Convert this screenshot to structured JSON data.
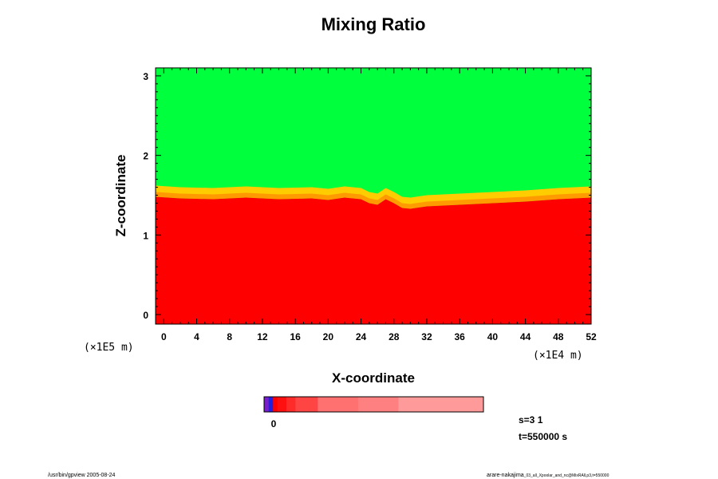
{
  "chart_data": {
    "type": "heatmap",
    "title": "Mixing Ratio",
    "xlabel": "X-coordinate",
    "ylabel": "Z-coordinate",
    "x_scale_label": "(×1E4 m)",
    "y_scale_label": "(×1E5 m)",
    "xlim": [
      -1,
      52
    ],
    "ylim": [
      -0.12,
      3.1
    ],
    "x_ticks": [
      0,
      4,
      8,
      12,
      16,
      20,
      24,
      28,
      32,
      36,
      40,
      44,
      48,
      52
    ],
    "y_ticks": [
      0,
      1,
      2,
      3
    ],
    "grid": false,
    "regions": [
      {
        "name": "upper",
        "color": "#00ff3c",
        "z_from": 1.5,
        "z_to": 3.1
      },
      {
        "name": "transition",
        "color": "#ffcc00",
        "z_from": 1.35,
        "z_to": 1.55
      },
      {
        "name": "lower",
        "color": "#ff0000",
        "z_from": -0.12,
        "z_to": 1.35
      }
    ],
    "interface_profile": {
      "x": [
        -1,
        2,
        6,
        10,
        14,
        18,
        20,
        22,
        24,
        25,
        26,
        27,
        28,
        29,
        30,
        32,
        36,
        40,
        44,
        48,
        52
      ],
      "z": [
        1.48,
        1.46,
        1.45,
        1.47,
        1.45,
        1.46,
        1.44,
        1.47,
        1.45,
        1.4,
        1.38,
        1.45,
        1.4,
        1.34,
        1.33,
        1.36,
        1.38,
        1.4,
        1.42,
        1.45,
        1.47
      ]
    },
    "colorbar": {
      "colors": [
        "#7a1fc8",
        "#2020e0",
        "#ff0000",
        "#ff1010",
        "#ff2a2a",
        "#ff4444",
        "#ff7070",
        "#ff8080",
        "#ff9a9a"
      ],
      "widths": [
        1,
        1,
        1,
        2,
        2,
        5,
        9,
        9,
        19
      ],
      "tick_label": "0"
    }
  },
  "annotations": {
    "s_label": "s=3 1",
    "t_label": "t=550000 s",
    "footer_left": "/usr/bin/gpview 2005-08-24",
    "footer_right": "arare-nakajima",
    "footer_right_small": "_03_all_Xpoolar_and_nc@MixRAll,p3,t=550000"
  }
}
